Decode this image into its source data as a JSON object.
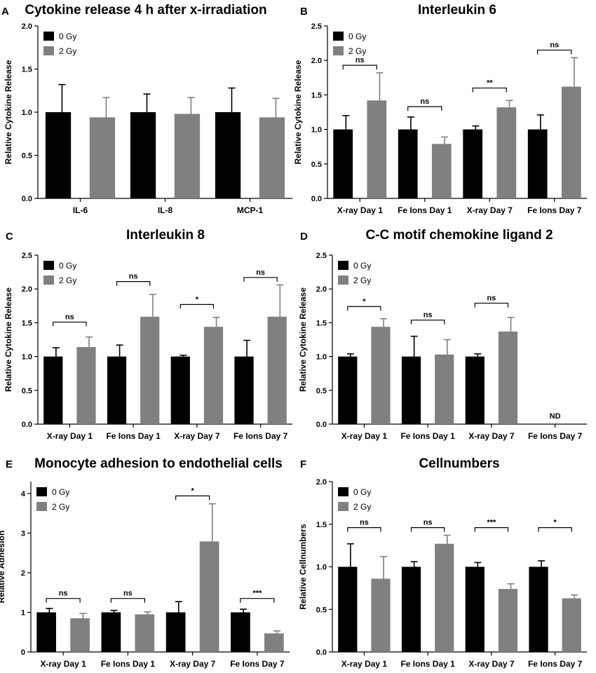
{
  "colors": {
    "series0": "#000000",
    "series1": "#808080",
    "axis": "#000000"
  },
  "chart_data": [
    {
      "panel": "A",
      "type": "bar",
      "title": "Cytokine release 4 h after x-irradiation",
      "xlabel": "",
      "ylabel": "Relative Cytokine Release",
      "ylim": [
        0,
        2.0
      ],
      "yticks": [
        "0.0",
        "0.5",
        "1.0",
        "1.5",
        "2.0"
      ],
      "categories": [
        "IL-6",
        "IL-8",
        "MCP-1"
      ],
      "series": [
        {
          "name": "0 Gy",
          "values": [
            1.0,
            1.0,
            1.0
          ],
          "errors": [
            0.32,
            0.21,
            0.28
          ]
        },
        {
          "name": "2 Gy",
          "values": [
            0.94,
            0.98,
            0.94
          ],
          "errors": [
            0.23,
            0.19,
            0.22
          ]
        }
      ],
      "significance": [
        null,
        null,
        null
      ],
      "nd": [
        false,
        false,
        false
      ],
      "legend": "top-left"
    },
    {
      "panel": "B",
      "type": "bar",
      "title": "Interleukin 6",
      "xlabel": "",
      "ylabel": "Relative Cytokine Release",
      "ylim": [
        0,
        2.5
      ],
      "yticks": [
        "0.0",
        "0.5",
        "1.0",
        "1.5",
        "2.0",
        "2.5"
      ],
      "categories": [
        "X-ray Day 1",
        "Fe Ions Day 1",
        "X-ray Day 7",
        "Fe Ions Day 7"
      ],
      "series": [
        {
          "name": "0 Gy",
          "values": [
            1.0,
            1.0,
            1.0,
            1.0
          ],
          "errors": [
            0.2,
            0.18,
            0.05,
            0.21
          ]
        },
        {
          "name": "2 Gy",
          "values": [
            1.42,
            0.79,
            1.32,
            1.62
          ],
          "errors": [
            0.4,
            0.1,
            0.1,
            0.42
          ]
        }
      ],
      "significance": [
        "ns",
        "ns",
        "**",
        "ns"
      ],
      "sig_level": [
        1.93,
        1.33,
        1.6,
        2.15
      ],
      "nd": [
        false,
        false,
        false,
        false
      ],
      "legend": "top-left"
    },
    {
      "panel": "C",
      "type": "bar",
      "title": "Interleukin 8",
      "xlabel": "",
      "ylabel": "Relative Cytokine Release",
      "ylim": [
        0,
        2.5
      ],
      "yticks": [
        "0.0",
        "0.5",
        "1.0",
        "1.5",
        "2.0",
        "2.5"
      ],
      "categories": [
        "X-ray Day 1",
        "Fe Ions Day 1",
        "X-ray Day 7",
        "Fe Ions Day 7"
      ],
      "series": [
        {
          "name": "0 Gy",
          "values": [
            1.0,
            1.0,
            1.0,
            1.0
          ],
          "errors": [
            0.13,
            0.17,
            0.02,
            0.24
          ]
        },
        {
          "name": "2 Gy",
          "values": [
            1.14,
            1.59,
            1.44,
            1.59
          ],
          "errors": [
            0.15,
            0.33,
            0.14,
            0.47
          ]
        }
      ],
      "significance": [
        "ns",
        "ns",
        "*",
        "ns"
      ],
      "sig_level": [
        1.51,
        2.11,
        1.77,
        2.17
      ],
      "nd": [
        false,
        false,
        false,
        false
      ],
      "legend": "top-left"
    },
    {
      "panel": "D",
      "type": "bar",
      "title": "C-C motif chemokine ligand 2",
      "xlabel": "",
      "ylabel": "Relative Cytokine Release",
      "ylim": [
        0,
        2.5
      ],
      "yticks": [
        "0.0",
        "0.5",
        "1.0",
        "1.5",
        "2.0",
        "2.5"
      ],
      "categories": [
        "X-ray Day 1",
        "Fe Ions Day 1",
        "X-ray Day 7",
        "Fe Ions Day 7"
      ],
      "series": [
        {
          "name": "0 Gy",
          "values": [
            1.0,
            1.0,
            1.0,
            null
          ],
          "errors": [
            0.04,
            0.3,
            0.04,
            0
          ]
        },
        {
          "name": "2 Gy",
          "values": [
            1.44,
            1.03,
            1.37,
            null
          ],
          "errors": [
            0.12,
            0.22,
            0.21,
            0
          ]
        }
      ],
      "significance": [
        "*",
        "ns",
        "ns",
        null
      ],
      "sig_level": [
        1.74,
        1.54,
        1.79,
        null
      ],
      "nd": [
        false,
        false,
        false,
        true
      ],
      "nd_label": "ND",
      "legend": "top-left"
    },
    {
      "panel": "E",
      "type": "bar",
      "title": "Monocyte adhesion to endothelial cells",
      "xlabel": "",
      "ylabel": "Relative Adhesion",
      "ylim": [
        0,
        4.3
      ],
      "yticks": [
        "0",
        "1",
        "2",
        "3",
        "4"
      ],
      "categories": [
        "X-ray Day 1",
        "Fe Ions Day 1",
        "X-ray Day 7",
        "Fe Ions Day 7"
      ],
      "series": [
        {
          "name": "0 Gy",
          "values": [
            1.0,
            1.0,
            1.0,
            1.0
          ],
          "errors": [
            0.1,
            0.05,
            0.27,
            0.08
          ]
        },
        {
          "name": "2 Gy",
          "values": [
            0.85,
            0.95,
            2.79,
            0.47
          ],
          "errors": [
            0.12,
            0.06,
            0.95,
            0.06
          ]
        }
      ],
      "significance": [
        "ns",
        "ns",
        "*",
        "***"
      ],
      "sig_level": [
        1.35,
        1.35,
        3.94,
        1.35
      ],
      "nd": [
        false,
        false,
        false,
        false
      ],
      "legend": "top-left"
    },
    {
      "panel": "F",
      "type": "bar",
      "title": "Cellnumbers",
      "xlabel": "",
      "ylabel": "Relative Cellnumbers",
      "ylim": [
        0,
        2.0
      ],
      "yticks": [
        "0.0",
        "0.5",
        "1.0",
        "1.5",
        "2.0"
      ],
      "categories": [
        "X-ray Day 1",
        "Fe Ions Day 1",
        "X-ray Day 7",
        "Fe Ions Day 7"
      ],
      "series": [
        {
          "name": "0 Gy",
          "values": [
            1.0,
            1.0,
            1.0,
            1.0
          ],
          "errors": [
            0.27,
            0.06,
            0.05,
            0.07
          ]
        },
        {
          "name": "2 Gy",
          "values": [
            0.86,
            1.27,
            0.74,
            0.63
          ],
          "errors": [
            0.26,
            0.1,
            0.06,
            0.04
          ]
        }
      ],
      "significance": [
        "ns",
        "ns",
        "***",
        "*"
      ],
      "sig_level": [
        1.46,
        1.46,
        1.46,
        1.46
      ],
      "nd": [
        false,
        false,
        false,
        false
      ],
      "legend": "top-left"
    }
  ]
}
